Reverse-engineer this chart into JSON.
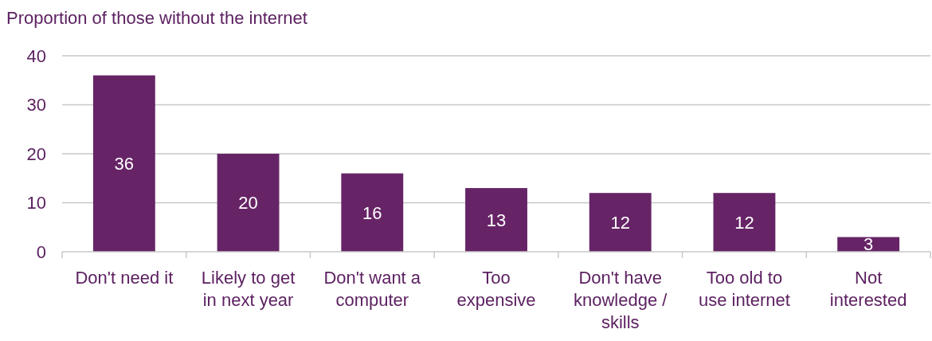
{
  "chart_data": {
    "type": "bar",
    "ylabel": "Proportion of those without the internet",
    "categories": [
      "Don't need it",
      "Likely to get\nin next year",
      "Don't want a\ncomputer",
      "Too\nexpensive",
      "Don't have\nknowledge /\nskills",
      "Too old to\nuse internet",
      "Not\ninterested"
    ],
    "values": [
      36,
      20,
      16,
      13,
      12,
      12,
      3
    ],
    "color": "#662466",
    "ylim": [
      0,
      40
    ],
    "yticks": [
      0,
      10,
      20,
      30,
      40
    ],
    "grid": "y",
    "data_labels": true
  }
}
